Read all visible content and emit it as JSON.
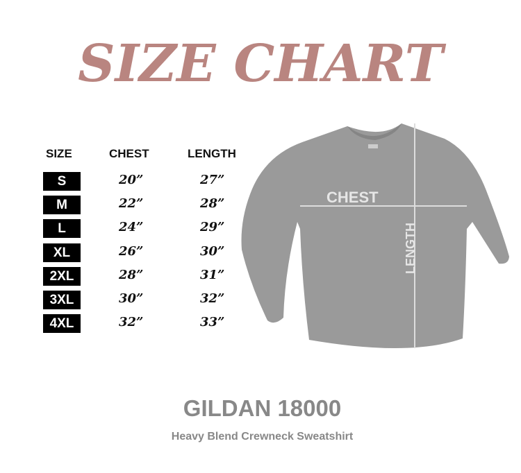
{
  "title": "SIZE CHART",
  "colors": {
    "title": "#b98580",
    "badge": "#000000",
    "shirt": "#9a9a9a",
    "measure_text": "#e6e6e6"
  },
  "table": {
    "headers": [
      "SIZE",
      "CHEST",
      "LENGTH"
    ],
    "rows": [
      {
        "size": "S",
        "chest": "20”",
        "length": "27”"
      },
      {
        "size": "M",
        "chest": "22”",
        "length": "28”"
      },
      {
        "size": "L",
        "chest": "24”",
        "length": "29”"
      },
      {
        "size": "XL",
        "chest": "26”",
        "length": "30”"
      },
      {
        "size": "2XL",
        "chest": "28”",
        "length": "31”"
      },
      {
        "size": "3XL",
        "chest": "30”",
        "length": "32”"
      },
      {
        "size": "4XL",
        "chest": "32”",
        "length": "33”"
      }
    ]
  },
  "diagram": {
    "chest_label": "CHEST",
    "length_label": "LENGTH"
  },
  "product": {
    "model": "GILDAN 18000",
    "description": "Heavy Blend Crewneck Sweatshirt"
  }
}
